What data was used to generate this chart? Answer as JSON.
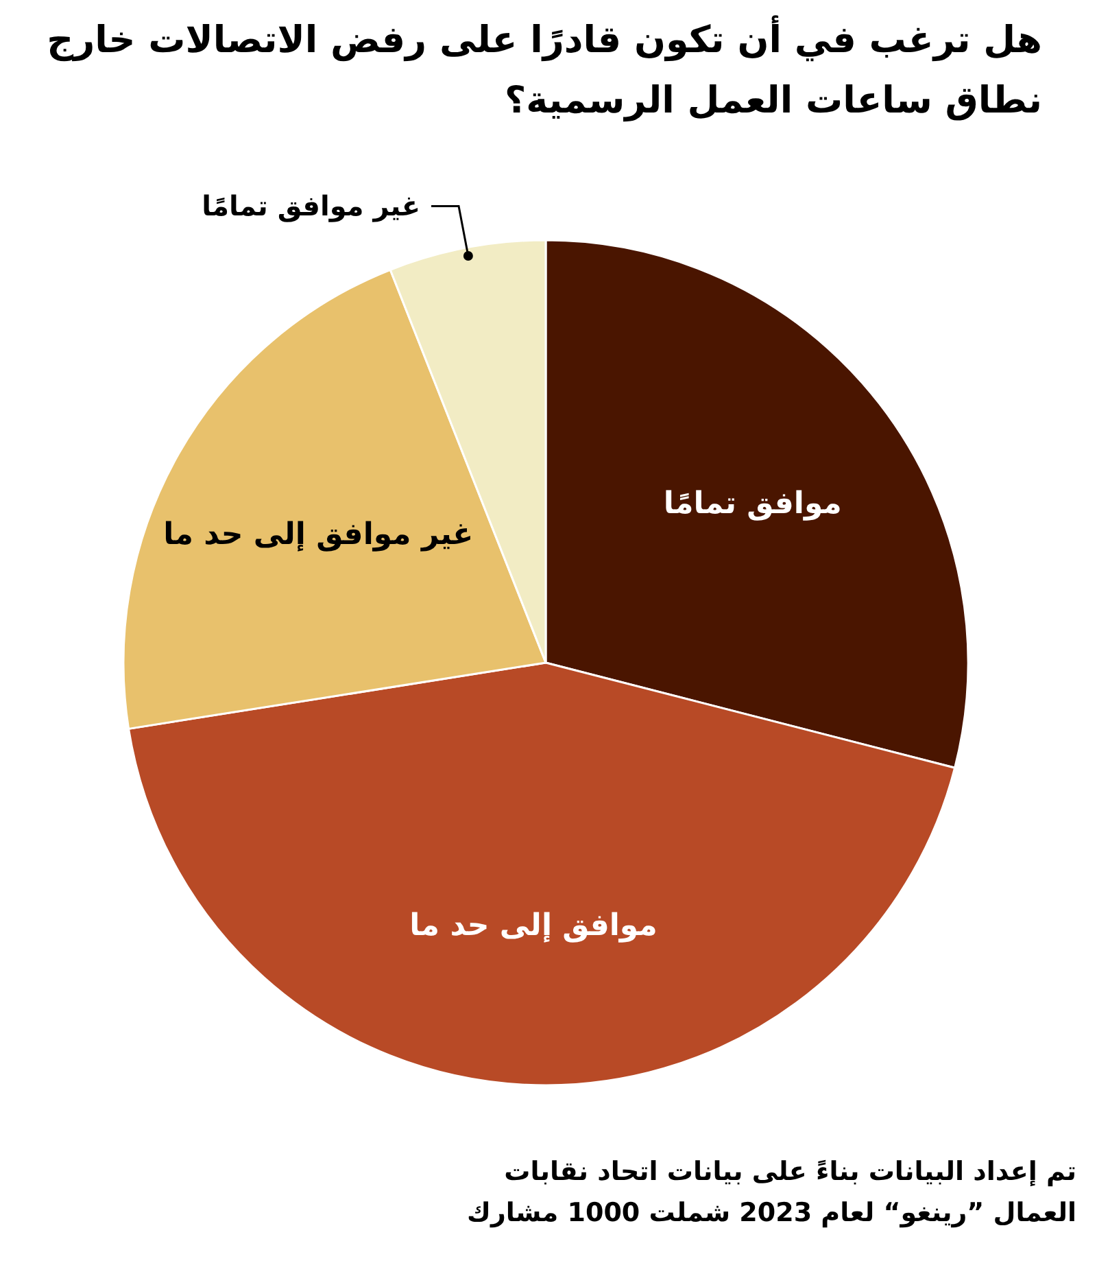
{
  "chart_data": {
    "type": "pie",
    "title": "هل ترغب في أن تكون قادرًا على رفض الاتصالات خارج نطاق ساعات العمل الرسمية؟",
    "categories": [
      "موافق تمامًا",
      "موافق إلى حد ما",
      "غير موافق إلى حد ما",
      "غير موافق تمامًا"
    ],
    "values": [
      29,
      43.5,
      21.5,
      6
    ],
    "colors": [
      "#4a1500",
      "#b84a26",
      "#e8c16c",
      "#f2ecc4"
    ],
    "annotations": [
      "تم إعداد البيانات بناءً على بيانات اتحاد نقابات العمال ”رينغو“ لعام 2023 شملت 1000 مشارك"
    ]
  }
}
